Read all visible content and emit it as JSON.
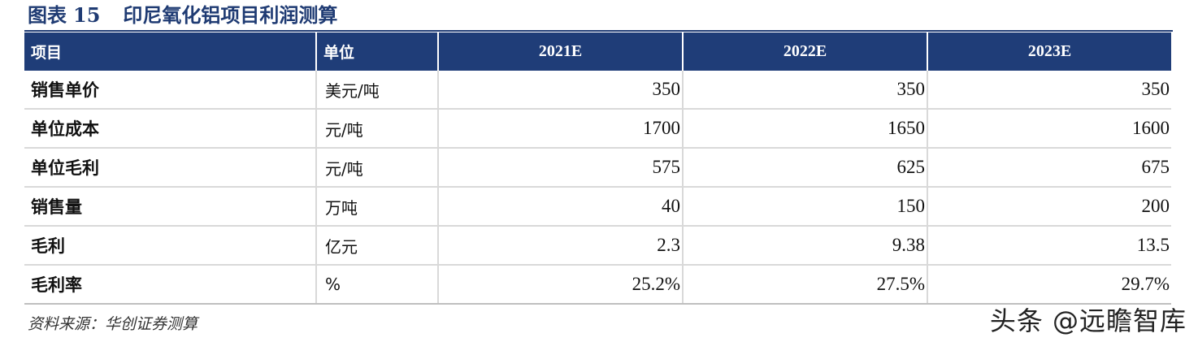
{
  "title": {
    "label": "图表",
    "number": "15",
    "text": "印尼氧化铝项目利润测算"
  },
  "table": {
    "headers": [
      "项目",
      "单位",
      "2021E",
      "2022E",
      "2023E"
    ],
    "rows": [
      {
        "item": "销售单价",
        "unit": "美元/吨",
        "y2021": "350",
        "y2022": "350",
        "y2023": "350"
      },
      {
        "item": "单位成本",
        "unit": "元/吨",
        "y2021": "1700",
        "y2022": "1650",
        "y2023": "1600"
      },
      {
        "item": "单位毛利",
        "unit": "元/吨",
        "y2021": "575",
        "y2022": "625",
        "y2023": "675"
      },
      {
        "item": "销售量",
        "unit": "万吨",
        "y2021": "40",
        "y2022": "150",
        "y2023": "200"
      },
      {
        "item": "毛利",
        "unit": "亿元",
        "y2021": "2.3",
        "y2022": "9.38",
        "y2023": "13.5"
      },
      {
        "item": "毛利率",
        "unit": "%",
        "y2021": "25.2%",
        "y2022": "27.5%",
        "y2023": "29.7%"
      }
    ]
  },
  "source": "资料来源：华创证券测算",
  "watermark": "头条 @远瞻智库",
  "colors": {
    "header_bg": "#1f3d78",
    "title": "#1f3b73",
    "grid": "#d9d9d9"
  }
}
